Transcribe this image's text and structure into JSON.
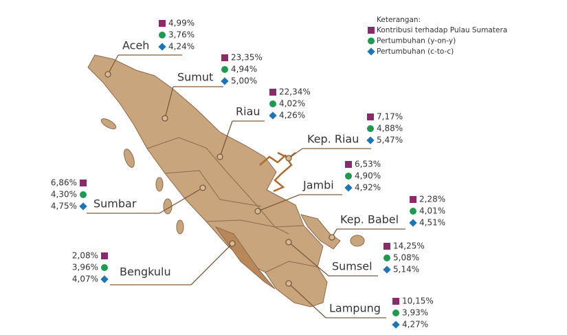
{
  "legend": {
    "title": "Keterangan:",
    "items": [
      "Kontribusi terhadap Pulau Sumatera",
      "Pertumbuhan (y-on-y)",
      "Pertumbuhan (c-to-c)"
    ]
  },
  "provinces": [
    {
      "name": "Aceh",
      "contribution": "4,99%",
      "yoy": "3,76%",
      "ctc": "4,24%"
    },
    {
      "name": "Sumut",
      "contribution": "23,35%",
      "yoy": "4,94%",
      "ctc": "5,00%"
    },
    {
      "name": "Riau",
      "contribution": "22,34%",
      "yoy": "4,02%",
      "ctc": "4,26%"
    },
    {
      "name": "Kep. Riau",
      "contribution": "7,17%",
      "yoy": "4,88%",
      "ctc": "5,47%"
    },
    {
      "name": "Jambi",
      "contribution": "6,53%",
      "yoy": "4,90%",
      "ctc": "4,92%"
    },
    {
      "name": "Sumbar",
      "contribution": "6,86%",
      "yoy": "4,30%",
      "ctc": "4,75%"
    },
    {
      "name": "Kep. Babel",
      "contribution": "2,28%",
      "yoy": "4,01%",
      "ctc": "4,51%"
    },
    {
      "name": "Bengkulu",
      "contribution": "2,08%",
      "yoy": "3,96%",
      "ctc": "4,07%"
    },
    {
      "name": "Sumsel",
      "contribution": "14,25%",
      "yoy": "5,08%",
      "ctc": "5,14%"
    },
    {
      "name": "Lampung",
      "contribution": "10,15%",
      "yoy": "3,93%",
      "ctc": "4,27%"
    }
  ]
}
